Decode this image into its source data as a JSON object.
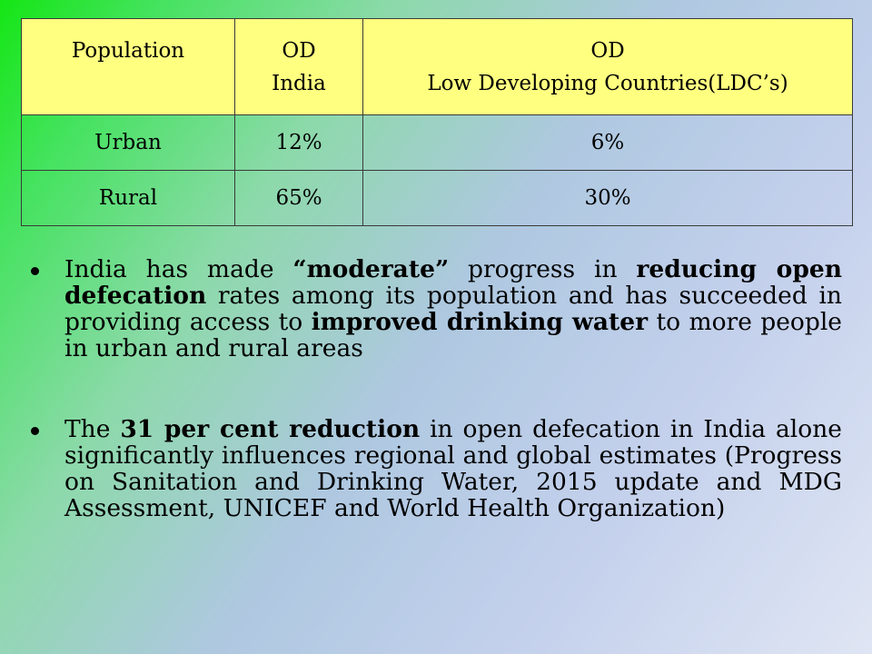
{
  "table": {
    "header": {
      "population": "Population",
      "od_india": [
        "OD",
        "India"
      ],
      "od_ldc": [
        "OD",
        "Low Developing Countries(LDC’s)"
      ]
    },
    "rows": [
      {
        "population": "Urban",
        "od_india": "12%",
        "od_ldc": "6%"
      },
      {
        "population": "Rural",
        "od_india": "65%",
        "od_ldc": "30%"
      }
    ]
  },
  "bullets": [
    {
      "segments": [
        {
          "text": "India has made ",
          "bold": false
        },
        {
          "text": "“moderate”",
          "bold": true
        },
        {
          "text": " progress in ",
          "bold": false
        },
        {
          "text": "reducing open defecation",
          "bold": true
        },
        {
          "text": " rates among its population and has succeeded in providing access to ",
          "bold": false
        },
        {
          "text": "improved drinking water",
          "bold": true
        },
        {
          "text": " to more people in urban and rural areas",
          "bold": false
        }
      ]
    },
    {
      "segments": [
        {
          "text": "The ",
          "bold": false
        },
        {
          "text": "31 per cent reduction",
          "bold": true
        },
        {
          "text": " in open defecation in India alone significantly influences regional and global estimates (Progress on Sanitation and Drinking Water, 2015 update and MDG Assessment, UNICEF and World Health Organization)",
          "bold": false
        }
      ]
    }
  ]
}
